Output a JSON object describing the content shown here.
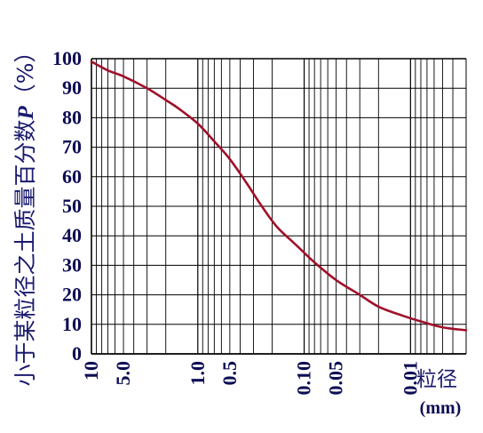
{
  "chart_data": {
    "type": "line",
    "ylabel_text": "小于某粒径之土质量百分数",
    "ylabel_var": "P",
    "ylabel_unit": "（%）",
    "xlabel": "粒径",
    "xlabel_unit": "(mm)",
    "x_scale": "log-reversed",
    "xlim": [
      10,
      0.003
    ],
    "ylim": [
      0,
      100
    ],
    "y_ticks": [
      0,
      10,
      20,
      30,
      40,
      50,
      60,
      70,
      80,
      90,
      100
    ],
    "x_tick_labels": [
      {
        "value": 10,
        "label": "10"
      },
      {
        "value": 5,
        "label": "5.0"
      },
      {
        "value": 1,
        "label": "1.0"
      },
      {
        "value": 0.5,
        "label": "0.5"
      },
      {
        "value": 0.1,
        "label": "0.10"
      },
      {
        "value": 0.05,
        "label": "0.05"
      },
      {
        "value": 0.01,
        "label": "0.01"
      }
    ],
    "grid": true,
    "series": [
      {
        "color": "#a0102a",
        "x": [
          10,
          7,
          5,
          3,
          2,
          1.5,
          1.0,
          0.7,
          0.5,
          0.35,
          0.25,
          0.18,
          0.12,
          0.08,
          0.05,
          0.03,
          0.02,
          0.012,
          0.008,
          0.005,
          0.003
        ],
        "y": [
          99,
          96,
          94,
          90,
          86,
          83,
          78,
          72,
          66,
          58,
          50,
          43,
          37,
          31,
          25,
          20,
          16,
          13,
          11,
          9,
          8
        ]
      }
    ]
  }
}
